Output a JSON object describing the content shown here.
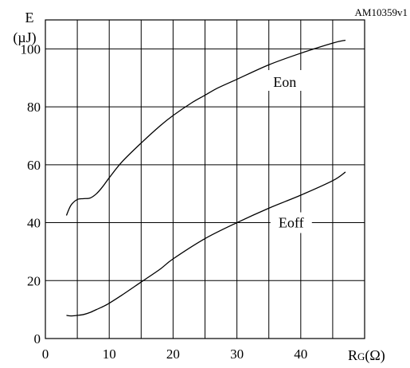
{
  "chart_data": {
    "type": "line",
    "reference_code": "AM10359v1",
    "ylabel_line1": "E",
    "ylabel_line2": "(µJ)",
    "xlabel_main": "R",
    "xlabel_sub": "G",
    "xlabel_unit": "(Ω)",
    "xlim": [
      0,
      50
    ],
    "ylim": [
      0,
      110
    ],
    "grid": true,
    "x_ticks": [
      0,
      10,
      20,
      30,
      40
    ],
    "y_ticks": [
      0,
      20,
      40,
      60,
      80,
      100
    ],
    "series": [
      {
        "name": "Eon",
        "x": [
          3.3,
          4,
          5,
          6,
          7,
          8,
          9,
          10,
          12,
          15,
          18,
          20,
          23,
          25,
          27,
          30,
          35,
          40,
          45,
          47
        ],
        "y": [
          42.5,
          46,
          48,
          48.3,
          48.5,
          50,
          52.5,
          55.5,
          61,
          67.5,
          73.5,
          77,
          81.5,
          84,
          86.5,
          89.5,
          94.5,
          98.5,
          102,
          103
        ]
      },
      {
        "name": "Eoff",
        "x": [
          3.3,
          4,
          5,
          6,
          7,
          8,
          9,
          10,
          12,
          15,
          18,
          20,
          25,
          30,
          35,
          40,
          45,
          47
        ],
        "y": [
          8,
          7.8,
          8,
          8.3,
          9,
          10,
          11,
          12.2,
          15,
          19.5,
          24,
          27.5,
          34.5,
          40,
          45,
          49.5,
          54.5,
          57.5
        ]
      }
    ]
  }
}
